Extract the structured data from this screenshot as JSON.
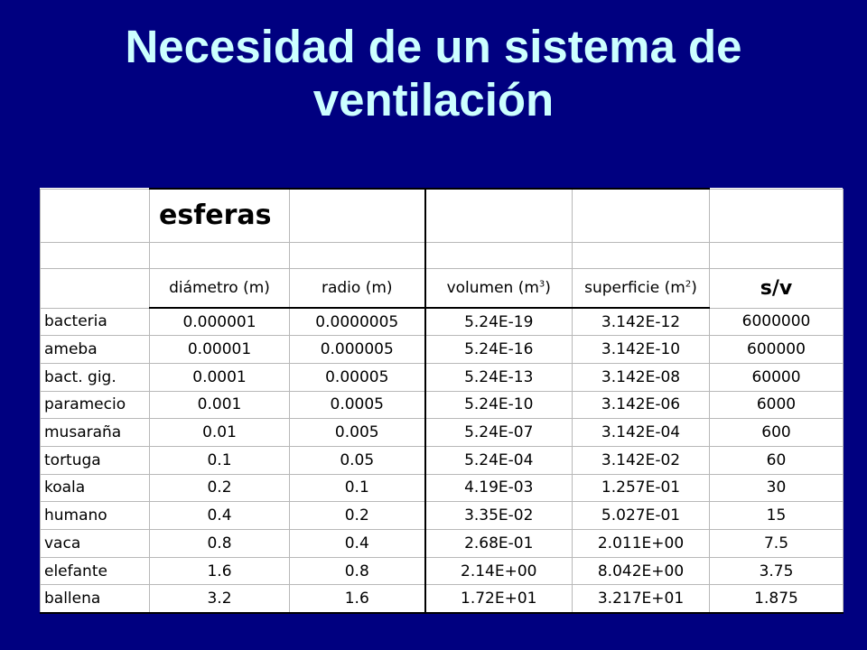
{
  "title": {
    "line1": "Necesidad de un sistema de",
    "line2": "ventilación"
  },
  "table": {
    "section_label": "esferas",
    "headers": {
      "diametro": "diámetro (m)",
      "radio": "radio (m)",
      "volumen": "volumen (m",
      "volumen_exp": "3",
      "volumen_close": ")",
      "superficie": "superficie (m",
      "superficie_exp": "2",
      "superficie_close": ")",
      "sv": "s/v"
    },
    "rows": [
      {
        "name": "bacteria",
        "diametro": "0.000001",
        "radio": "0.0000005",
        "volumen": "5.24E-19",
        "superficie": "3.142E-12",
        "sv": "6000000"
      },
      {
        "name": "ameba",
        "diametro": "0.00001",
        "radio": "0.000005",
        "volumen": "5.24E-16",
        "superficie": "3.142E-10",
        "sv": "600000"
      },
      {
        "name": "bact. gig.",
        "diametro": "0.0001",
        "radio": "0.00005",
        "volumen": "5.24E-13",
        "superficie": "3.142E-08",
        "sv": "60000"
      },
      {
        "name": "paramecio",
        "diametro": "0.001",
        "radio": "0.0005",
        "volumen": "5.24E-10",
        "superficie": "3.142E-06",
        "sv": "6000"
      },
      {
        "name": "musaraña",
        "diametro": "0.01",
        "radio": "0.005",
        "volumen": "5.24E-07",
        "superficie": "3.142E-04",
        "sv": "600"
      },
      {
        "name": "tortuga",
        "diametro": "0.1",
        "radio": "0.05",
        "volumen": "5.24E-04",
        "superficie": "3.142E-02",
        "sv": "60"
      },
      {
        "name": "koala",
        "diametro": "0.2",
        "radio": "0.1",
        "volumen": "4.19E-03",
        "superficie": "1.257E-01",
        "sv": "30"
      },
      {
        "name": "humano",
        "diametro": "0.4",
        "radio": "0.2",
        "volumen": "3.35E-02",
        "superficie": "5.027E-01",
        "sv": "15"
      },
      {
        "name": "vaca",
        "diametro": "0.8",
        "radio": "0.4",
        "volumen": "2.68E-01",
        "superficie": "2.011E+00",
        "sv": "7.5"
      },
      {
        "name": "elefante",
        "diametro": "1.6",
        "radio": "0.8",
        "volumen": "2.14E+00",
        "superficie": "8.042E+00",
        "sv": "3.75"
      },
      {
        "name": "ballena",
        "diametro": "3.2",
        "radio": "1.6",
        "volumen": "1.72E+01",
        "superficie": "3.217E+01",
        "sv": "1.875"
      }
    ]
  }
}
